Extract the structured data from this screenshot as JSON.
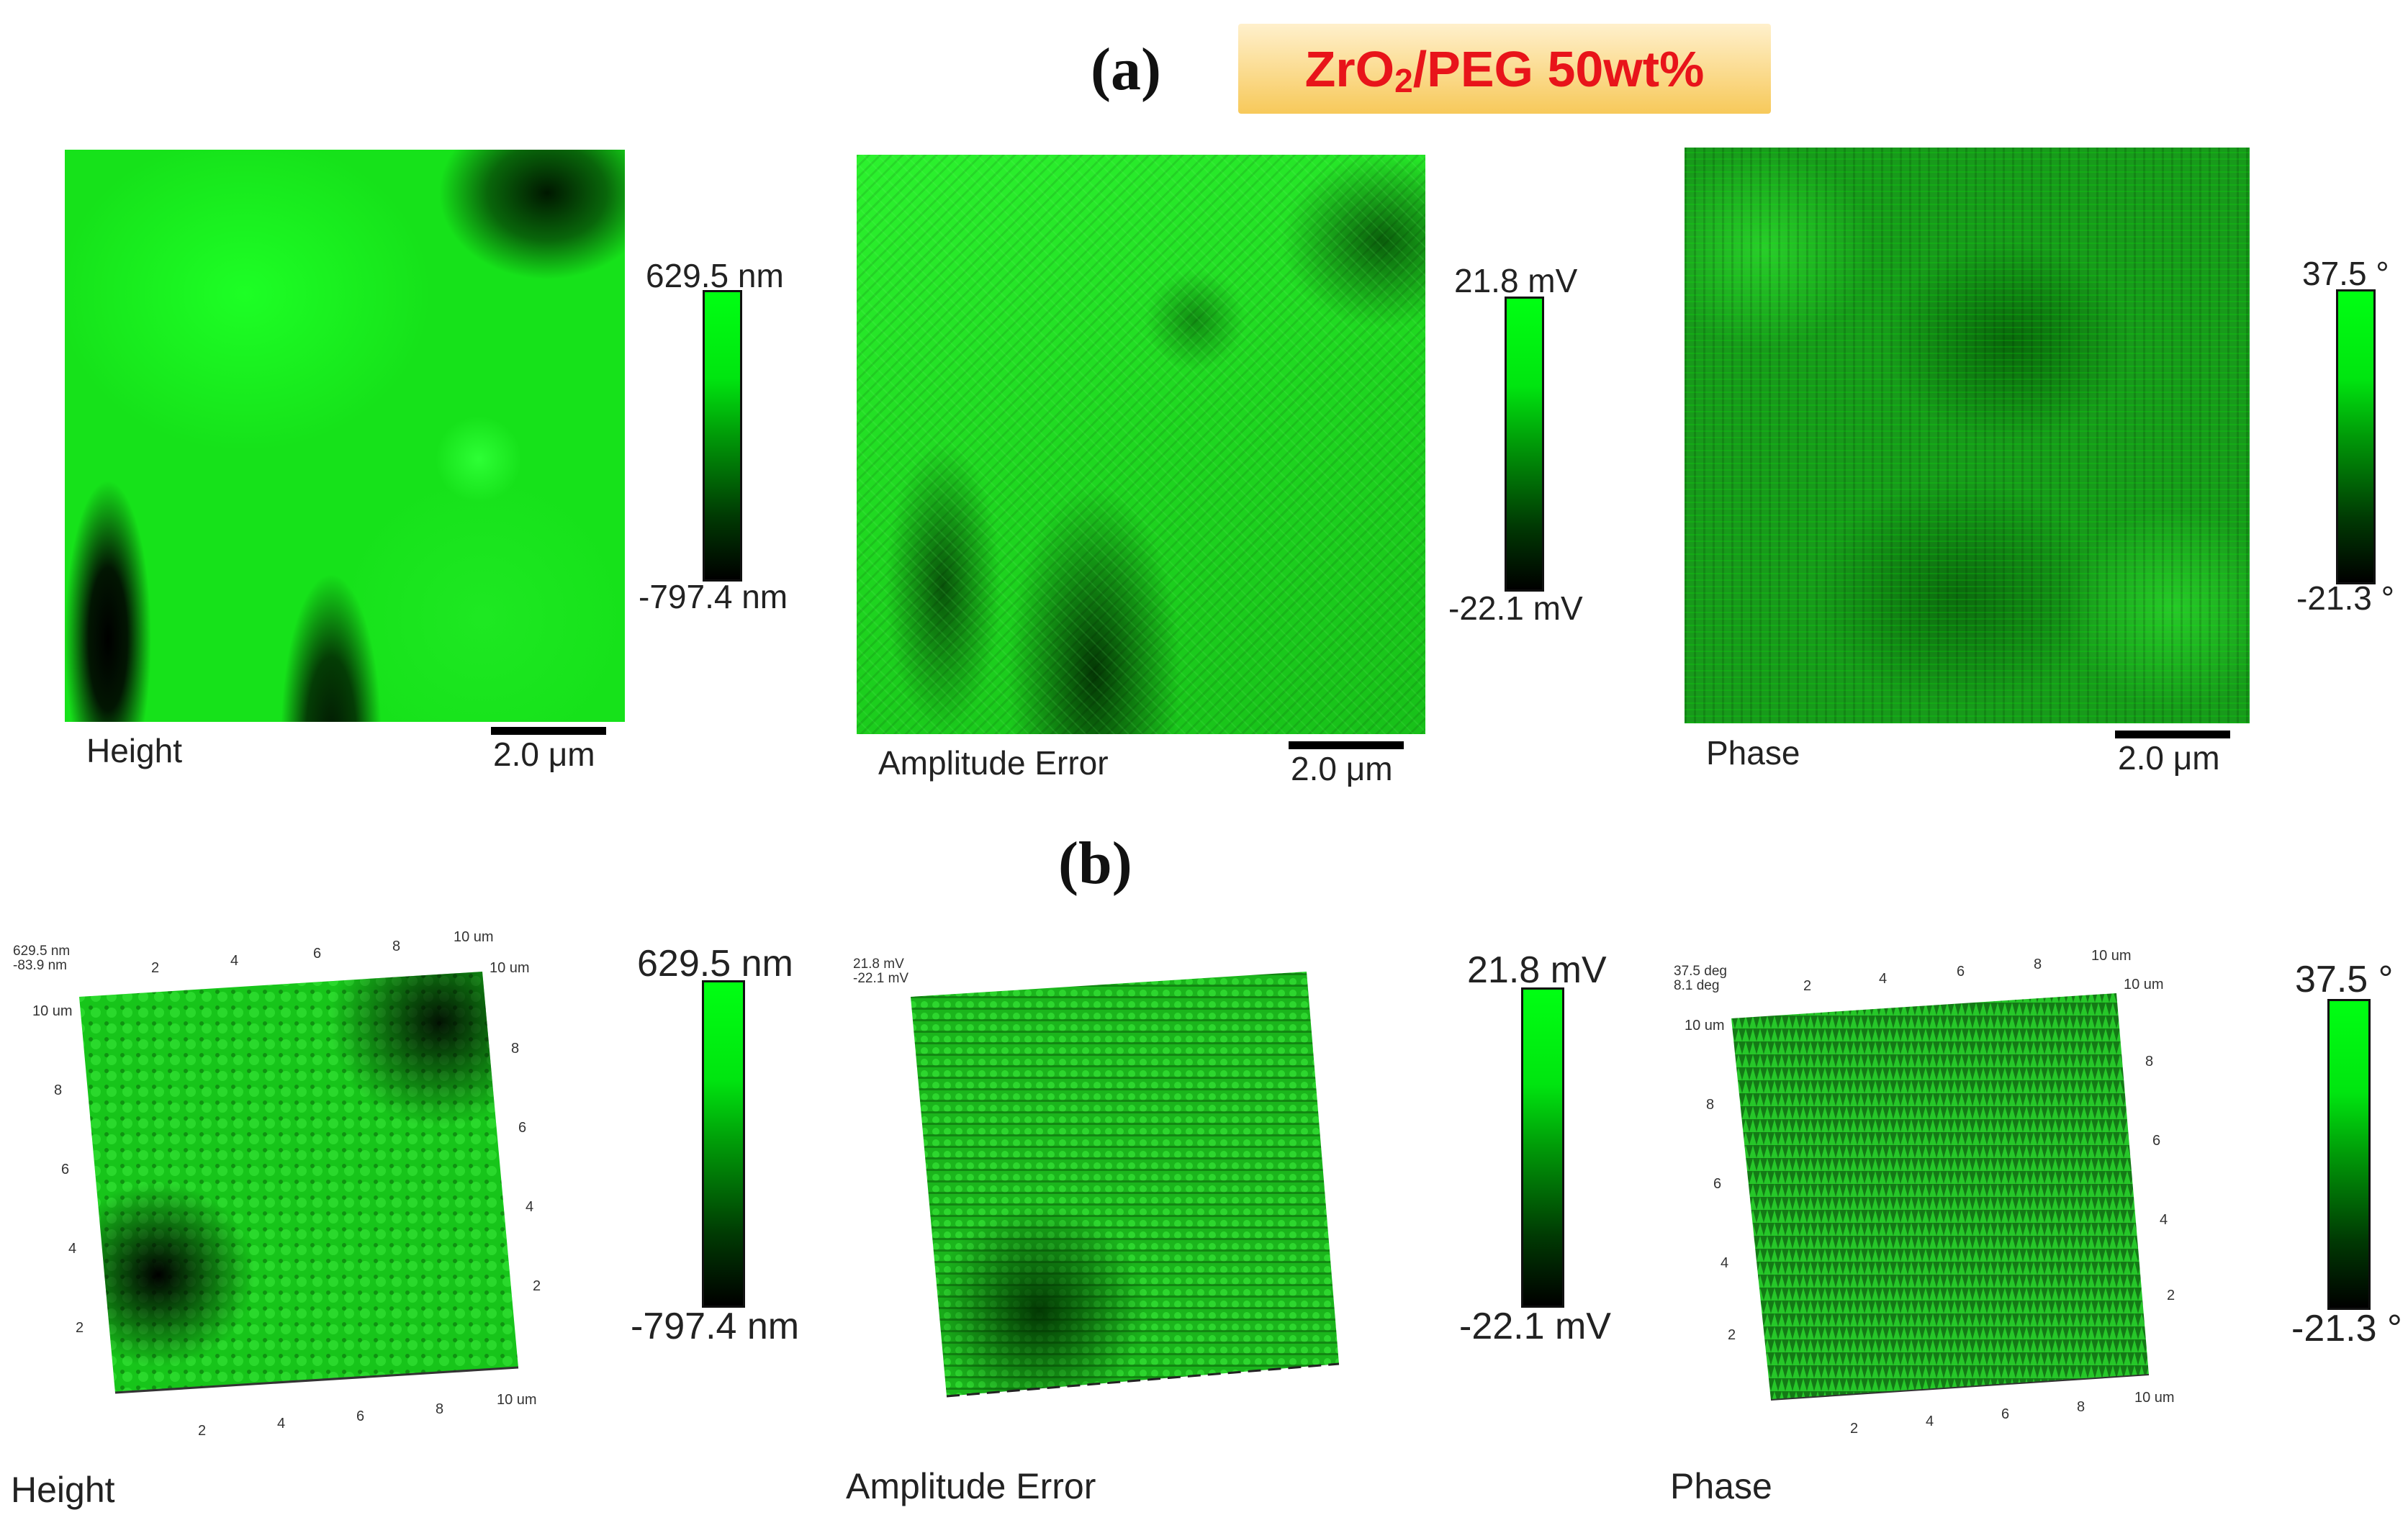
{
  "header": {
    "label_a": "(a)",
    "label_b": "(b)",
    "title_main": "ZrO",
    "title_sub": "2",
    "title_rest": "/PEG 50wt%"
  },
  "top_row": [
    {
      "caption": "Height",
      "cbar_max": "629.5 nm",
      "cbar_min": "-797.4 nm",
      "scale": "2.0 μm"
    },
    {
      "caption": "Amplitude Error",
      "cbar_max": "21.8 mV",
      "cbar_min": "-22.1 mV",
      "scale": "2.0 μm"
    },
    {
      "caption": "Phase",
      "cbar_max": "37.5 °",
      "cbar_min": "-21.3 °",
      "scale": "2.0 μm"
    }
  ],
  "bottom_row": [
    {
      "caption": "Height",
      "cbar_max": "629.5 nm",
      "cbar_min": "-797.4 nm",
      "corner_1": "629.5 nm",
      "corner_2": "-83.9 nm"
    },
    {
      "caption": "Amplitude Error",
      "cbar_max": "21.8 mV",
      "cbar_min": "-22.1 mV",
      "corner_1": "21.8 mV",
      "corner_2": "-22.1 mV"
    },
    {
      "caption": "Phase",
      "cbar_max": "37.5 °",
      "cbar_min": "-21.3 °",
      "corner_1": "37.5 deg",
      "corner_2": "8.1 deg"
    }
  ],
  "axis_ticks": {
    "top": [
      "2",
      "4",
      "6",
      "8",
      "10 um"
    ],
    "left": [
      "10 um",
      "8",
      "6",
      "4",
      "2"
    ],
    "right": [
      "10 um",
      "8",
      "6",
      "4",
      "2"
    ],
    "bottom": [
      "2",
      "4",
      "6",
      "8",
      "10 um"
    ]
  },
  "colors": {
    "title_text": "#e8141a",
    "afm_green": "#00ff12",
    "afm_dark": "#000000"
  }
}
